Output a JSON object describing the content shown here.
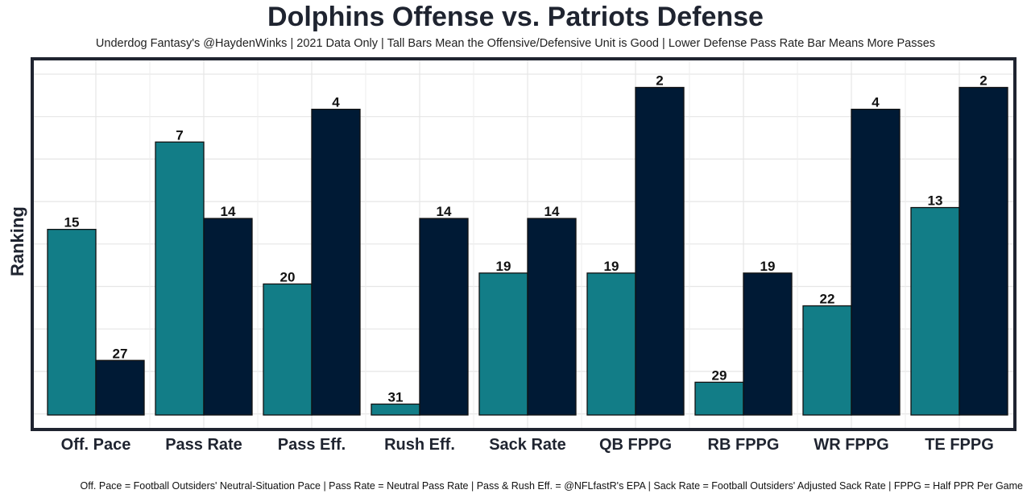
{
  "chart_data": {
    "type": "bar",
    "title": "Dolphins Offense vs. Patriots Defense",
    "subtitle": "Underdog Fantasy's @HaydenWinks | 2021 Data Only | Tall Bars Mean the Offensive/Defensive Unit is Good | Lower Defense Pass Rate Bar Means More Passes",
    "caption": "Off. Pace = Football Outsiders' Neutral-Situation Pace | Pass Rate = Neutral Pass Rate | Pass & Rush Eff. = @NFLfastR's EPA | Sack Rate = Football Outsiders' Adjusted Sack Rate | FPPG = Half PPR Per Game",
    "xlabel": "",
    "ylabel": "Ranking",
    "categories": [
      "Off. Pace",
      "Pass Rate",
      "Pass Eff.",
      "Rush Eff.",
      "Sack Rate",
      "QB FPPG",
      "RB FPPG",
      "WR FPPG",
      "TE FPPG"
    ],
    "series": [
      {
        "values": [
          15,
          7,
          20,
          31,
          19,
          19,
          29,
          22,
          13
        ],
        "color": "#127d87"
      },
      {
        "values": [
          27,
          14,
          4,
          14,
          14,
          2,
          19,
          4,
          2
        ],
        "color": "#001a35"
      }
    ],
    "y_scale": "inverted rank (rank 1 tallest)",
    "grid": true,
    "legend": "none"
  }
}
